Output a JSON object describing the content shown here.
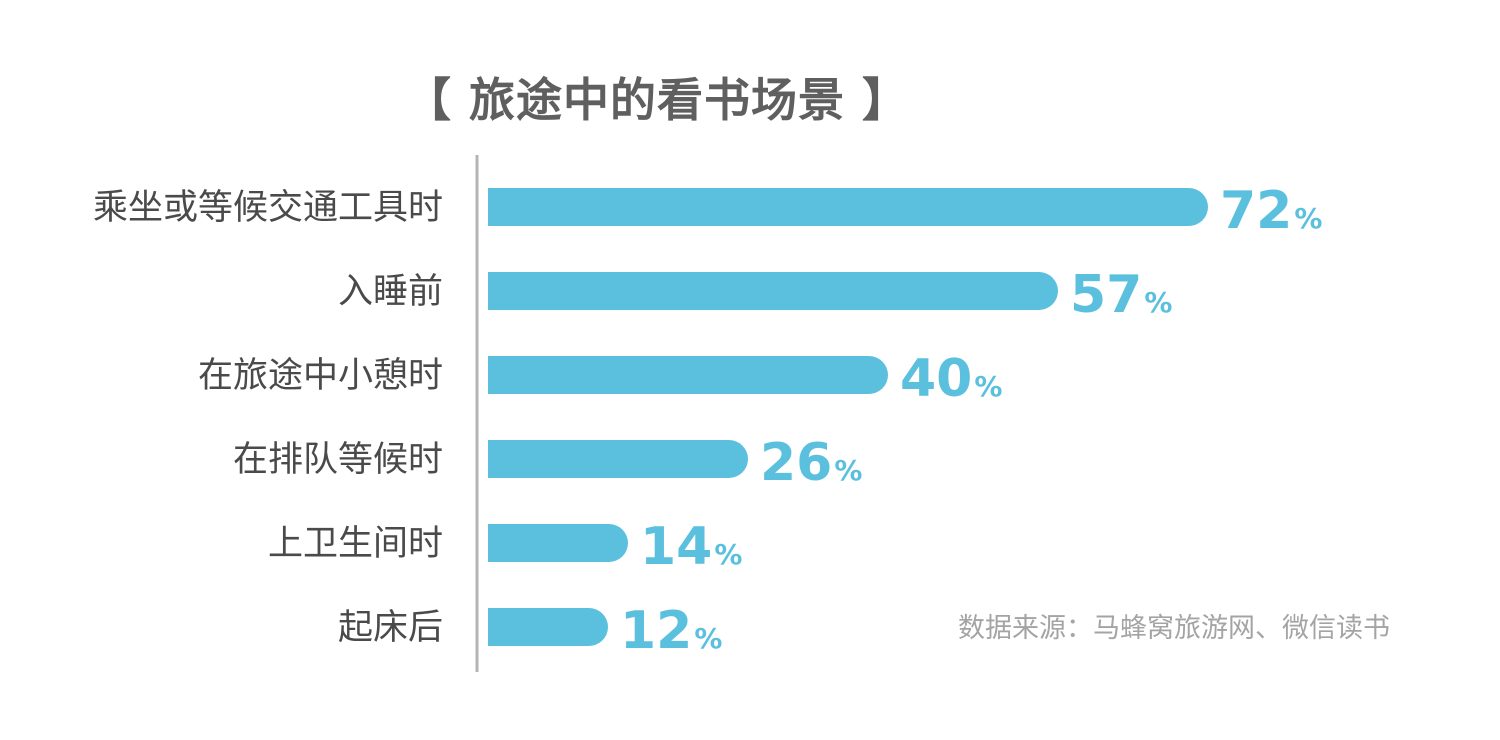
{
  "chart_data": {
    "type": "bar",
    "orientation": "horizontal",
    "title": "【 旅途中的看书场景 】",
    "categories": [
      "乘坐或等候交通工具时",
      "入睡前",
      "在旅途中小憩时",
      "在排队等候时",
      "上卫生间时",
      "起床后"
    ],
    "values": [
      72,
      57,
      40,
      26,
      14,
      12
    ],
    "value_labels": [
      "72",
      "57",
      "40",
      "26",
      "14",
      "12"
    ],
    "value_suffix": "%",
    "xlim": [
      0,
      90
    ],
    "grid": false,
    "bar_color": "#5bc0de",
    "axis_color": "#b5b5b5"
  },
  "source_note": "数据来源：马蜂窝旅游网、微信读书"
}
